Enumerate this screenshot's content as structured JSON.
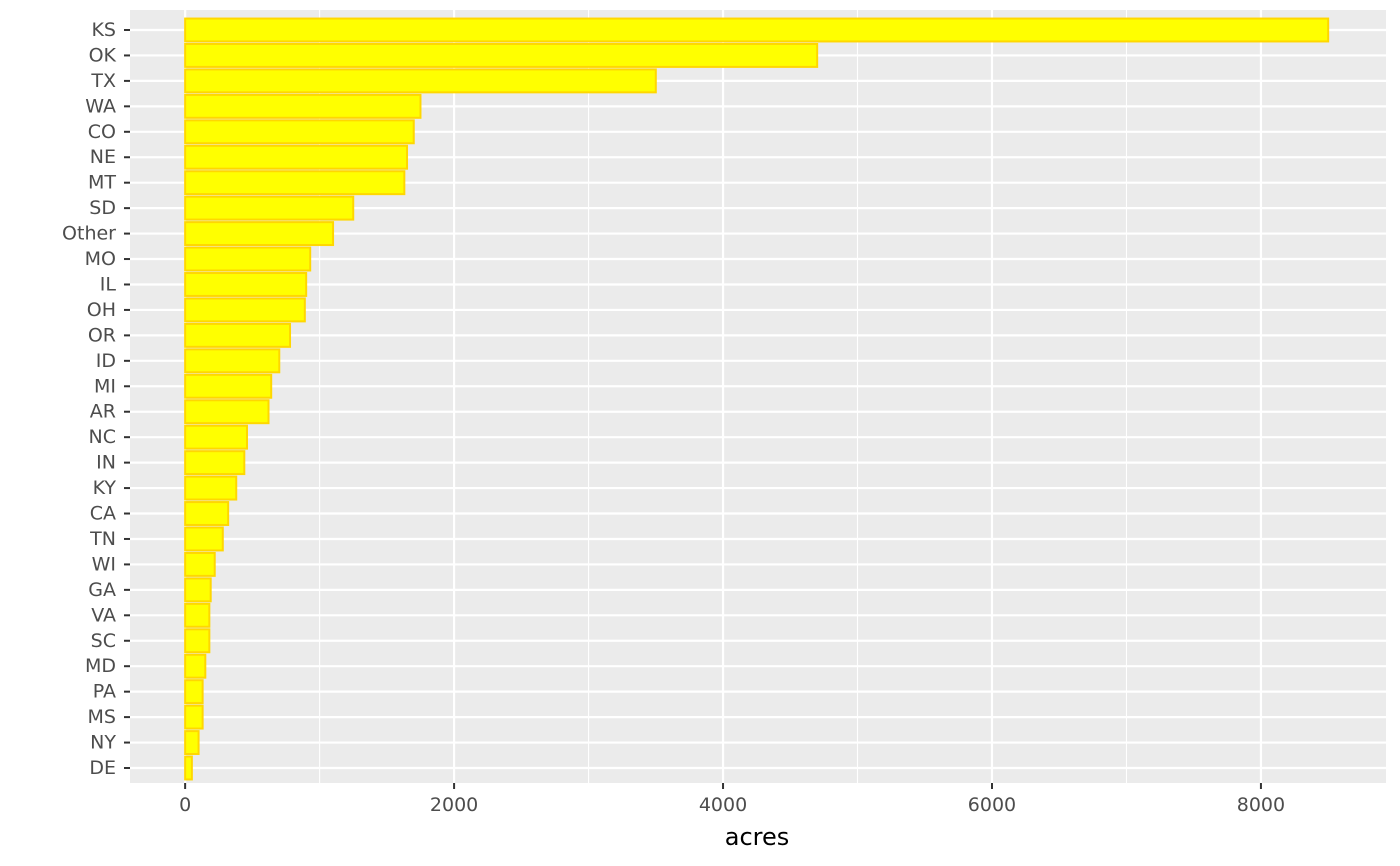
{
  "chart_data": {
    "type": "bar",
    "orientation": "horizontal",
    "title": "",
    "xlabel": "acres",
    "ylabel": "",
    "xlim": [
      -410,
      8930
    ],
    "x_ticks": [
      0,
      2000,
      4000,
      6000,
      8000
    ],
    "x_tick_labels": [
      "0",
      "2000",
      "4000",
      "6000",
      "8000"
    ],
    "grid": true,
    "legend": "none",
    "colors": {
      "panel_background": "#ebebeb",
      "grid": "#ffffff",
      "bar_fill": "#ffff00",
      "bar_outline": "#ffd700",
      "tick_text": "#4d4d4d",
      "tick_mark": "#333333",
      "title_text": "#000000"
    },
    "categories": [
      "KS",
      "OK",
      "TX",
      "WA",
      "CO",
      "NE",
      "MT",
      "SD",
      "Other",
      "MO",
      "IL",
      "OH",
      "OR",
      "ID",
      "MI",
      "AR",
      "NC",
      "IN",
      "KY",
      "CA",
      "TN",
      "WI",
      "GA",
      "VA",
      "SC",
      "MD",
      "PA",
      "MS",
      "NY",
      "DE"
    ],
    "values": [
      8500,
      4700,
      3500,
      1750,
      1700,
      1650,
      1630,
      1250,
      1100,
      930,
      900,
      890,
      780,
      700,
      640,
      620,
      460,
      440,
      380,
      320,
      280,
      220,
      190,
      180,
      180,
      150,
      130,
      130,
      100,
      50
    ]
  }
}
